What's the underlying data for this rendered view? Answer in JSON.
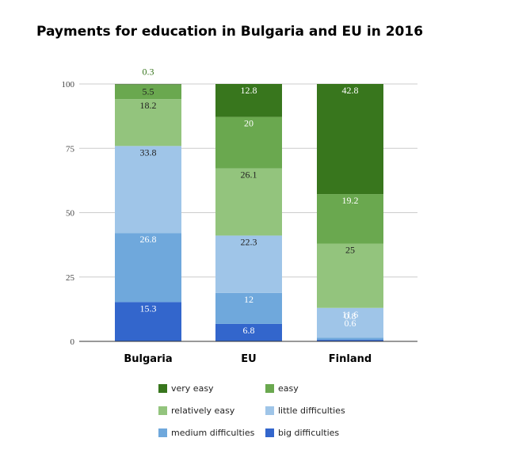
{
  "chart_data": {
    "type": "bar",
    "stacked": true,
    "title": "Payments for education in Bulgaria and EU in 2016",
    "categories": [
      "Bulgaria",
      "EU",
      "Finland"
    ],
    "ylim": [
      0,
      100
    ],
    "yticks": [
      0,
      25,
      50,
      75,
      100
    ],
    "grid": true,
    "legend_position": "bottom",
    "series": [
      {
        "name": "big difficulties",
        "color": "#3366cc",
        "values": [
          15.3,
          6.8,
          0.6
        ]
      },
      {
        "name": "medium difficulties",
        "color": "#6fa8dc",
        "values": [
          26.8,
          12,
          0.8
        ]
      },
      {
        "name": "little difficulties",
        "color": "#9fc5e8",
        "values": [
          33.8,
          22.3,
          11.6
        ]
      },
      {
        "name": "relatively easy",
        "color": "#93c47d",
        "values": [
          18.2,
          26.1,
          25
        ]
      },
      {
        "name": "easy",
        "color": "#6aa84f",
        "values": [
          5.5,
          20,
          19.2
        ]
      },
      {
        "name": "very easy",
        "color": "#38761d",
        "values": [
          0.3,
          12.8,
          42.8
        ]
      }
    ],
    "data_labels": [
      [
        "15.3",
        "6.8",
        "0.6"
      ],
      [
        "26.8",
        "12",
        "0.8"
      ],
      [
        "33.8",
        "22.3",
        "11.6"
      ],
      [
        "18.2",
        "26.1",
        "25"
      ],
      [
        "5.5",
        "20",
        "19.2"
      ],
      [
        "0.3",
        "12.8",
        "42.8"
      ]
    ],
    "legend_order": [
      "very easy",
      "easy",
      "relatively easy",
      "little difficulties",
      "medium difficulties",
      "big difficulties"
    ]
  }
}
